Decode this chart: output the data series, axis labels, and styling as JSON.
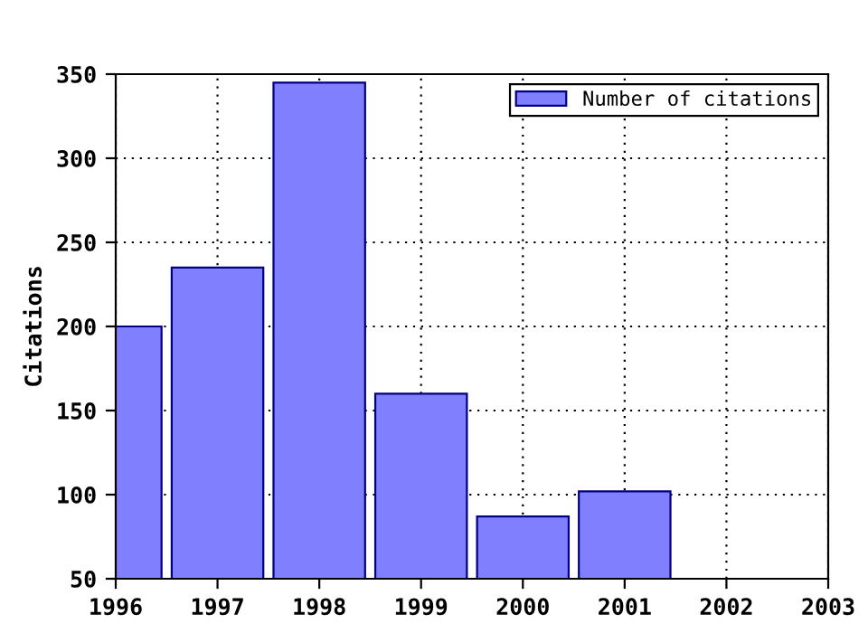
{
  "chart_data": {
    "type": "bar",
    "ylabel": "Citations",
    "x": [
      1996,
      1997,
      1998,
      1999,
      2000,
      2001
    ],
    "series": [
      {
        "name": "Number of citations",
        "color": "#8080ff",
        "values": [
          200,
          235,
          345,
          160,
          87,
          102
        ]
      }
    ],
    "xlim": [
      1996,
      2003
    ],
    "xticks": [
      1996,
      1997,
      1998,
      1999,
      2000,
      2001,
      2002,
      2003
    ],
    "ylim": [
      50,
      350
    ],
    "yticks": [
      50,
      100,
      150,
      200,
      250,
      300,
      350
    ],
    "grid": true,
    "legend": "top right"
  }
}
